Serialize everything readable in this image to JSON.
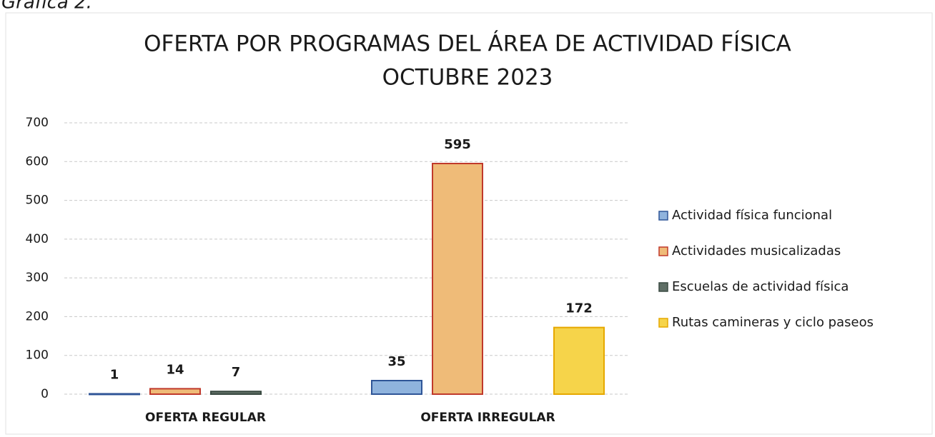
{
  "chart_data": {
    "type": "bar",
    "caption": "Gráfica 2.",
    "title": "OFERTA POR PROGRAMAS DEL ÁREA DE ACTIVIDAD FÍSICA",
    "subtitle": "OCTUBRE 2023",
    "categories": [
      "OFERTA  REGULAR",
      "OFERTA IRREGULAR"
    ],
    "series": [
      {
        "name": "Actividad física funcional",
        "color": "#8fb3dd",
        "edgecolor": "#2f5597",
        "values": [
          1,
          35
        ]
      },
      {
        "name": "Actividades musicalizadas",
        "color": "#efbb78",
        "edgecolor": "#c0392b",
        "values": [
          14,
          595
        ]
      },
      {
        "name": "Escuelas de actividad física",
        "color": "#5f6f66",
        "edgecolor": "#3a4a42",
        "values": [
          7,
          null
        ]
      },
      {
        "name": "Rutas camineras y ciclo paseos",
        "color": "#f6d44a",
        "edgecolor": "#e6a800",
        "values": [
          null,
          172
        ]
      }
    ],
    "ylim": [
      0,
      700
    ],
    "yticks": [
      0,
      100,
      200,
      300,
      400,
      500,
      600,
      700
    ],
    "grid": true,
    "legend": "right"
  }
}
